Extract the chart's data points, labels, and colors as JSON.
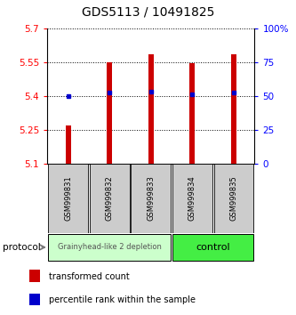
{
  "title": "GDS5113 / 10491825",
  "samples": [
    "GSM999831",
    "GSM999832",
    "GSM999833",
    "GSM999834",
    "GSM999835"
  ],
  "bar_values": [
    5.27,
    5.55,
    5.585,
    5.545,
    5.585
  ],
  "bar_base": 5.1,
  "percentile_y": [
    5.4,
    5.415,
    5.42,
    5.408,
    5.415
  ],
  "ylim": [
    5.1,
    5.7
  ],
  "yticks": [
    5.1,
    5.25,
    5.4,
    5.55,
    5.7
  ],
  "right_yticks": [
    0,
    25,
    50,
    75,
    100
  ],
  "right_ylabels": [
    "0",
    "25",
    "50",
    "75",
    "100%"
  ],
  "bar_color": "#cc0000",
  "percentile_color": "#0000cc",
  "background_color": "#ffffff",
  "group1_label": "Grainyhead-like 2 depletion",
  "group2_label": "control",
  "group1_color": "#ccffcc",
  "group2_color": "#44ee44",
  "group1_samples": [
    0,
    1,
    2
  ],
  "group2_samples": [
    3,
    4
  ],
  "protocol_label": "protocol",
  "legend_bar_label": "transformed count",
  "legend_pct_label": "percentile rank within the sample",
  "title_fontsize": 10,
  "tick_fontsize": 7.5,
  "sample_fontsize": 6,
  "group_fontsize1": 6,
  "group_fontsize2": 8,
  "legend_fontsize": 7
}
